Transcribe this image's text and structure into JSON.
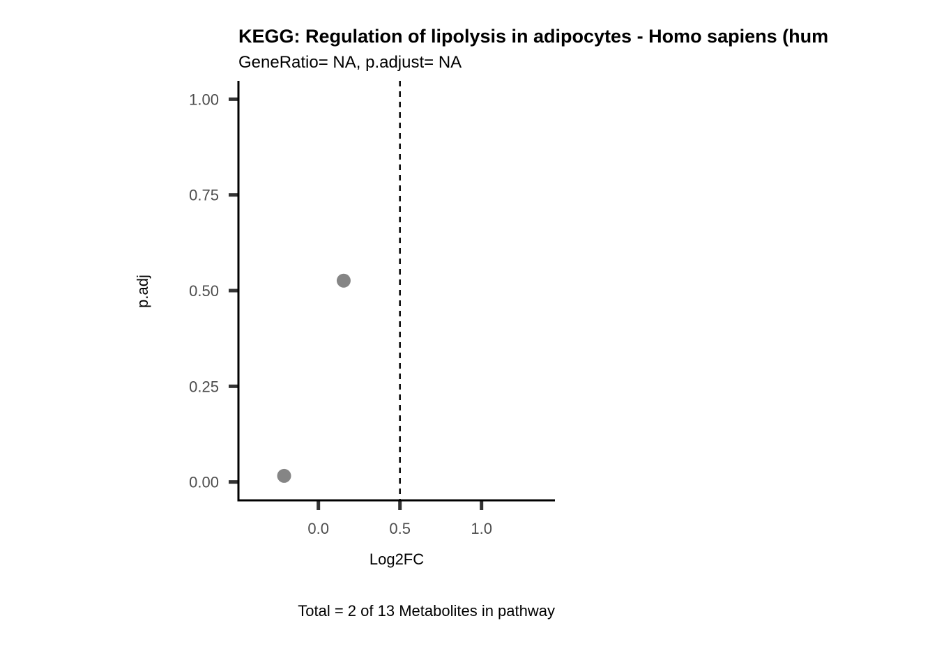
{
  "chart_data": {
    "type": "scatter",
    "title": "KEGG: Regulation of lipolysis in adipocytes - Homo sapiens (hum",
    "subtitle": "GeneRatio= NA, p.adjust= NA",
    "xlabel": "Log2FC",
    "ylabel": "p.adj",
    "caption": "Total = 2 of 13 Metabolites in pathway",
    "xlim": [
      -0.49,
      1.45
    ],
    "ylim": [
      -0.048,
      1.048
    ],
    "x_ticks": [
      0.0,
      0.5,
      1.0
    ],
    "x_tick_labels": [
      "0.0",
      "0.5",
      "1.0"
    ],
    "y_ticks": [
      0.0,
      0.25,
      0.5,
      0.75,
      1.0
    ],
    "y_tick_labels": [
      "0.00",
      "0.25",
      "0.50",
      "0.75",
      "1.00"
    ],
    "reference_lines": [
      {
        "orientation": "vertical",
        "x": 0.5,
        "style": "dashed",
        "color": "#000000"
      }
    ],
    "grid": false,
    "legend": "none",
    "point_color": "#858585",
    "points": [
      {
        "x": -0.21,
        "y": 0.016
      },
      {
        "x": 0.155,
        "y": 0.526
      }
    ]
  }
}
